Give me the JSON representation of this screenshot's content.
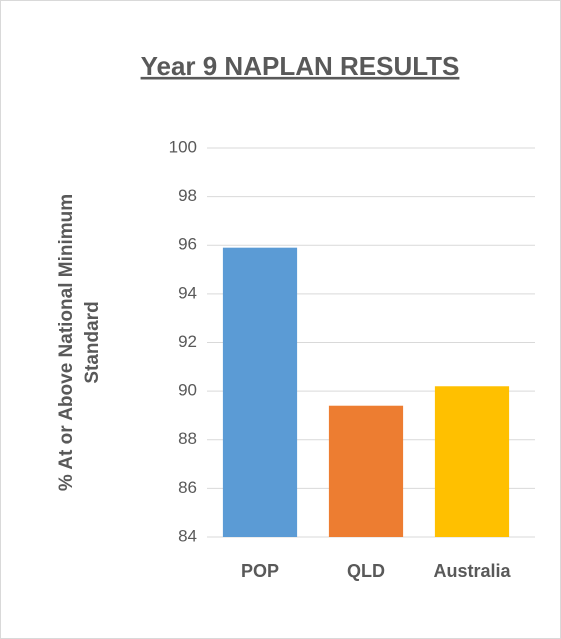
{
  "chart_data": {
    "type": "bar",
    "title": "Year 9 NAPLAN RESULTS",
    "ylabel_lines": [
      "% At or Above National Minimum",
      "Standard"
    ],
    "categories": [
      "POP",
      "QLD",
      "Australia"
    ],
    "values": [
      95.9,
      89.4,
      90.2
    ],
    "colors": [
      "#5b9bd5",
      "#ed7d31",
      "#ffc000"
    ],
    "ylim": [
      84,
      100
    ],
    "yticks": [
      84,
      86,
      88,
      90,
      92,
      94,
      96,
      98,
      100
    ],
    "grid": true
  }
}
